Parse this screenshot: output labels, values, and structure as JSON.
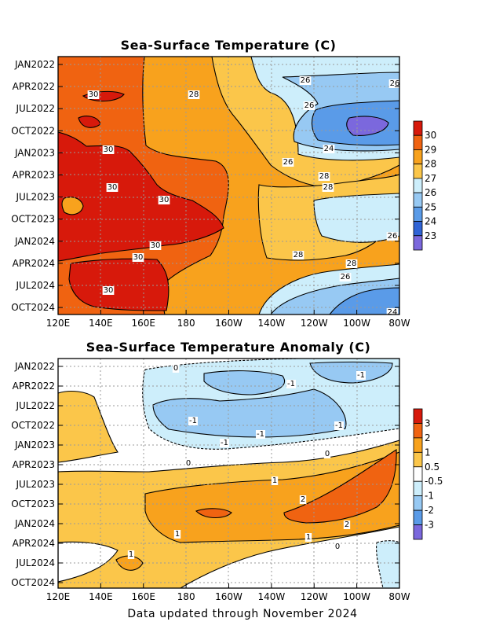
{
  "footer": "Data updated through November 2024",
  "chart_data": [
    {
      "type": "heatmap",
      "title": "Sea-Surface Temperature (C)",
      "xlabel": "",
      "ylabel": "",
      "x_ticks": [
        "120E",
        "140E",
        "160E",
        "180",
        "160W",
        "140W",
        "120W",
        "100W",
        "80W"
      ],
      "y_ticks": [
        "JAN2022",
        "APR2022",
        "JUL2022",
        "OCT2022",
        "JAN2023",
        "APR2023",
        "JUL2023",
        "OCT2023",
        "JAN2024",
        "APR2024",
        "JUL2024",
        "OCT2024"
      ],
      "colorbar_levels": [
        "30",
        "29",
        "28",
        "27",
        "26",
        "25",
        "24",
        "23"
      ],
      "colorbar_colors": [
        "#d7190b",
        "#f06311",
        "#f8a21d",
        "#fbc64a",
        "#cdeefb",
        "#97c9f3",
        "#5a9be8",
        "#2f63d6",
        "#7b68dd"
      ],
      "contour_labels": [
        "30",
        "30",
        "30",
        "30",
        "30",
        "30",
        "30",
        "28",
        "28",
        "28",
        "28",
        "28",
        "26",
        "26",
        "26",
        "26",
        "26",
        "26",
        "24",
        "24"
      ],
      "grid": true,
      "legend": "colorbar right"
    },
    {
      "type": "heatmap",
      "title": "Sea-Surface Temperature Anomaly (C)",
      "xlabel": "",
      "ylabel": "",
      "x_ticks": [
        "120E",
        "140E",
        "160E",
        "180",
        "160W",
        "140W",
        "120W",
        "100W",
        "80W"
      ],
      "y_ticks": [
        "JAN2022",
        "APR2022",
        "JUL2022",
        "OCT2022",
        "JAN2023",
        "APR2023",
        "JUL2023",
        "OCT2023",
        "JAN2024",
        "APR2024",
        "JUL2024",
        "OCT2024"
      ],
      "colorbar_levels": [
        "3",
        "2",
        "1",
        "0.5",
        "-0.5",
        "-1",
        "-2",
        "-3"
      ],
      "colorbar_colors": [
        "#d7190b",
        "#f06311",
        "#f8a21d",
        "#fbc64a",
        "#ffffff",
        "#cdeefb",
        "#97c9f3",
        "#5a9be8",
        "#7b68dd"
      ],
      "contour_labels": [
        "0",
        "-1",
        "-1",
        "-1",
        "-1",
        "-1",
        "-1",
        "0",
        "0",
        "1",
        "2",
        "2",
        "1",
        "1",
        "1",
        "0"
      ],
      "grid": true,
      "legend": "colorbar right"
    }
  ]
}
